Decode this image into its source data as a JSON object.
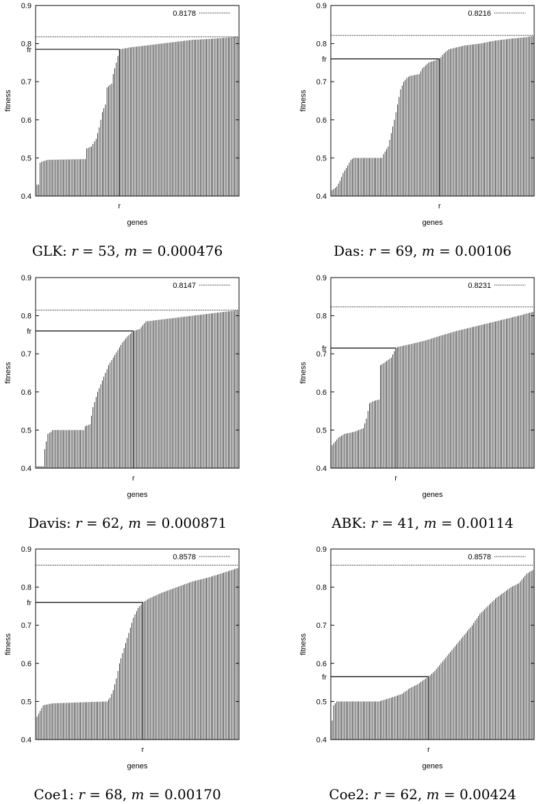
{
  "chart_data": [
    {
      "type": "bar",
      "caption_name": "GLK:",
      "caption_r_var": "r",
      "caption_r_eq": " = 53, ",
      "caption_m_var": "m",
      "caption_m_eq": " = 0.000476",
      "xlabel": "genes",
      "ylabel": "fitness",
      "r_label": "r",
      "fr_label": "fr",
      "ylim": [
        0.4,
        0.9
      ],
      "yticks": [
        "0.4",
        "0.5",
        "0.6",
        "0.7",
        "0.8",
        "0.9"
      ],
      "legend_value": 0.8178,
      "legend_label": "0.8178",
      "r": 53,
      "fr": 0.785,
      "n_genes": 130,
      "profile": [
        [
          0,
          0.43
        ],
        [
          1,
          0.43
        ],
        [
          2,
          0.487
        ],
        [
          3,
          0.49
        ],
        [
          7,
          0.495
        ],
        [
          31,
          0.497
        ],
        [
          32,
          0.525
        ],
        [
          35,
          0.53
        ],
        [
          38,
          0.55
        ],
        [
          40,
          0.58
        ],
        [
          42,
          0.62
        ],
        [
          44,
          0.64
        ],
        [
          45,
          0.685
        ],
        [
          48,
          0.695
        ],
        [
          49,
          0.72
        ],
        [
          51,
          0.75
        ],
        [
          53,
          0.785
        ],
        [
          60,
          0.79
        ],
        [
          70,
          0.795
        ],
        [
          80,
          0.8
        ],
        [
          90,
          0.805
        ],
        [
          100,
          0.81
        ],
        [
          110,
          0.812
        ],
        [
          120,
          0.815
        ],
        [
          129,
          0.818
        ]
      ],
      "grid": false,
      "legend_position": "top-right"
    },
    {
      "type": "bar",
      "caption_name": "Das:",
      "caption_r_var": "r",
      "caption_r_eq": " = 69, ",
      "caption_m_var": "m",
      "caption_m_eq": " = 0.00106",
      "xlabel": "genes",
      "ylabel": "fitness",
      "r_label": "r",
      "fr_label": "fr",
      "ylim": [
        0.4,
        0.9
      ],
      "yticks": [
        "0.4",
        "0.5",
        "0.6",
        "0.7",
        "0.8",
        "0.9"
      ],
      "legend_value": 0.8216,
      "legend_label": "0.8216",
      "r": 69,
      "fr": 0.76,
      "n_genes": 130,
      "profile": [
        [
          0,
          0.415
        ],
        [
          3,
          0.425
        ],
        [
          5,
          0.44
        ],
        [
          7,
          0.46
        ],
        [
          10,
          0.48
        ],
        [
          12,
          0.495
        ],
        [
          14,
          0.5
        ],
        [
          32,
          0.5
        ],
        [
          33,
          0.51
        ],
        [
          36,
          0.53
        ],
        [
          38,
          0.565
        ],
        [
          40,
          0.6
        ],
        [
          42,
          0.64
        ],
        [
          44,
          0.68
        ],
        [
          46,
          0.7
        ],
        [
          48,
          0.71
        ],
        [
          50,
          0.715
        ],
        [
          56,
          0.72
        ],
        [
          58,
          0.735
        ],
        [
          62,
          0.75
        ],
        [
          69,
          0.76
        ],
        [
          72,
          0.775
        ],
        [
          75,
          0.785
        ],
        [
          85,
          0.795
        ],
        [
          95,
          0.8
        ],
        [
          105,
          0.808
        ],
        [
          115,
          0.813
        ],
        [
          125,
          0.817
        ],
        [
          129,
          0.82
        ]
      ],
      "grid": false,
      "legend_position": "top-right"
    },
    {
      "type": "bar",
      "caption_name": "Davis:",
      "caption_r_var": "r",
      "caption_r_eq": " = 62, ",
      "caption_m_var": "m",
      "caption_m_eq": " = 0.000871",
      "xlabel": "genes",
      "ylabel": "fitness",
      "r_label": "r",
      "fr_label": "fr",
      "ylim": [
        0.4,
        0.9
      ],
      "yticks": [
        "0.4",
        "0.5",
        "0.6",
        "0.7",
        "0.8",
        "0.9"
      ],
      "legend_value": 0.8147,
      "legend_label": "0.8147",
      "r": 62,
      "fr": 0.76,
      "n_genes": 130,
      "profile": [
        [
          0,
          0.405
        ],
        [
          4,
          0.405
        ],
        [
          5,
          0.45
        ],
        [
          7,
          0.49
        ],
        [
          9,
          0.495
        ],
        [
          10,
          0.5
        ],
        [
          30,
          0.5
        ],
        [
          31,
          0.51
        ],
        [
          34,
          0.515
        ],
        [
          36,
          0.56
        ],
        [
          39,
          0.6
        ],
        [
          41,
          0.62
        ],
        [
          43,
          0.64
        ],
        [
          46,
          0.67
        ],
        [
          49,
          0.69
        ],
        [
          52,
          0.71
        ],
        [
          55,
          0.73
        ],
        [
          58,
          0.745
        ],
        [
          62,
          0.76
        ],
        [
          66,
          0.765
        ],
        [
          70,
          0.785
        ],
        [
          80,
          0.79
        ],
        [
          90,
          0.795
        ],
        [
          100,
          0.8
        ],
        [
          110,
          0.805
        ],
        [
          120,
          0.81
        ],
        [
          129,
          0.814
        ]
      ],
      "grid": false,
      "legend_position": "top-right"
    },
    {
      "type": "bar",
      "caption_name": "ABK:",
      "caption_r_var": "r",
      "caption_r_eq": " = 41, ",
      "caption_m_var": "m",
      "caption_m_eq": " = 0.00114",
      "xlabel": "genes",
      "ylabel": "fitness",
      "r_label": "r",
      "fr_label": "fr",
      "ylim": [
        0.4,
        0.9
      ],
      "yticks": [
        "0.4",
        "0.5",
        "0.6",
        "0.7",
        "0.8",
        "0.9"
      ],
      "legend_value": 0.8231,
      "legend_label": "0.8231",
      "r": 41,
      "fr": 0.715,
      "n_genes": 130,
      "profile": [
        [
          0,
          0.46
        ],
        [
          2,
          0.47
        ],
        [
          4,
          0.48
        ],
        [
          8,
          0.49
        ],
        [
          14,
          0.495
        ],
        [
          20,
          0.505
        ],
        [
          22,
          0.53
        ],
        [
          24,
          0.57
        ],
        [
          26,
          0.575
        ],
        [
          30,
          0.58
        ],
        [
          31,
          0.67
        ],
        [
          33,
          0.675
        ],
        [
          38,
          0.69
        ],
        [
          41,
          0.715
        ],
        [
          42,
          0.718
        ],
        [
          50,
          0.725
        ],
        [
          60,
          0.735
        ],
        [
          70,
          0.748
        ],
        [
          80,
          0.76
        ],
        [
          90,
          0.77
        ],
        [
          100,
          0.78
        ],
        [
          110,
          0.79
        ],
        [
          120,
          0.8
        ],
        [
          129,
          0.81
        ]
      ],
      "grid": false,
      "legend_position": "top-right"
    },
    {
      "type": "bar",
      "caption_name": "Coe1:",
      "caption_r_var": "r",
      "caption_r_eq": " = 68, ",
      "caption_m_var": "m",
      "caption_m_eq": " = 0.00170",
      "xlabel": "genes",
      "ylabel": "fitness",
      "r_label": "r",
      "fr_label": "fr",
      "ylim": [
        0.4,
        0.9
      ],
      "yticks": [
        "0.4",
        "0.5",
        "0.6",
        "0.7",
        "0.8",
        "0.9"
      ],
      "legend_value": 0.8578,
      "legend_label": "0.8578",
      "r": 68,
      "fr": 0.76,
      "n_genes": 130,
      "profile": [
        [
          0,
          0.46
        ],
        [
          2,
          0.475
        ],
        [
          4,
          0.49
        ],
        [
          10,
          0.495
        ],
        [
          30,
          0.498
        ],
        [
          45,
          0.5
        ],
        [
          47,
          0.51
        ],
        [
          49,
          0.53
        ],
        [
          51,
          0.56
        ],
        [
          53,
          0.6
        ],
        [
          56,
          0.64
        ],
        [
          59,
          0.68
        ],
        [
          62,
          0.72
        ],
        [
          65,
          0.745
        ],
        [
          68,
          0.76
        ],
        [
          72,
          0.77
        ],
        [
          80,
          0.785
        ],
        [
          90,
          0.8
        ],
        [
          100,
          0.815
        ],
        [
          110,
          0.825
        ],
        [
          120,
          0.838
        ],
        [
          129,
          0.85
        ]
      ],
      "grid": false,
      "legend_position": "top-right"
    },
    {
      "type": "bar",
      "caption_name": "Coe2:",
      "caption_r_var": "r",
      "caption_r_eq": " = 62, ",
      "caption_m_var": "m",
      "caption_m_eq": " = 0.00424",
      "xlabel": "genes",
      "ylabel": "fitness",
      "r_label": "r",
      "fr_label": "fr",
      "ylim": [
        0.4,
        0.9
      ],
      "yticks": [
        "0.4",
        "0.5",
        "0.6",
        "0.7",
        "0.8",
        "0.9"
      ],
      "legend_value": 0.8578,
      "legend_label": "0.8578",
      "r": 62,
      "fr": 0.565,
      "n_genes": 130,
      "profile": [
        [
          0,
          0.45
        ],
        [
          1,
          0.49
        ],
        [
          3,
          0.5
        ],
        [
          30,
          0.5
        ],
        [
          38,
          0.51
        ],
        [
          45,
          0.52
        ],
        [
          50,
          0.535
        ],
        [
          55,
          0.545
        ],
        [
          60,
          0.56
        ],
        [
          62,
          0.565
        ],
        [
          66,
          0.58
        ],
        [
          70,
          0.6
        ],
        [
          75,
          0.625
        ],
        [
          80,
          0.65
        ],
        [
          85,
          0.675
        ],
        [
          90,
          0.7
        ],
        [
          95,
          0.73
        ],
        [
          100,
          0.75
        ],
        [
          105,
          0.77
        ],
        [
          110,
          0.785
        ],
        [
          115,
          0.8
        ],
        [
          120,
          0.81
        ],
        [
          125,
          0.835
        ],
        [
          129,
          0.845
        ]
      ],
      "grid": false,
      "legend_position": "top-right"
    }
  ]
}
